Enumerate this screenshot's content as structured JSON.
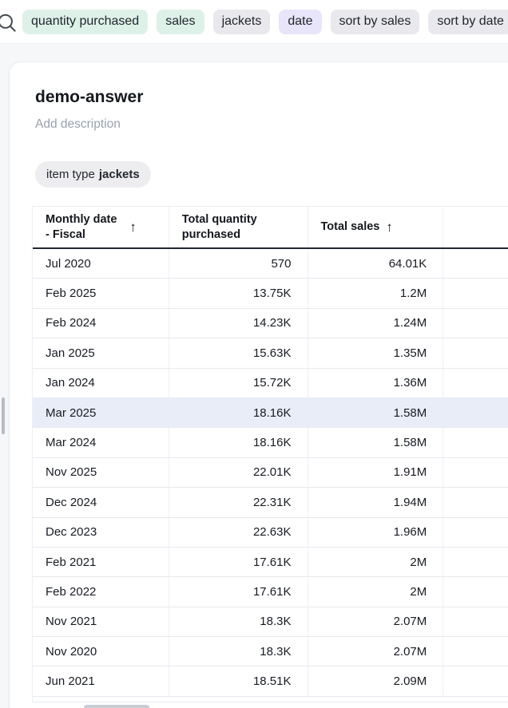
{
  "search_bar": {
    "chips": [
      {
        "label": "quantity purchased",
        "type": "metric"
      },
      {
        "label": "sales",
        "type": "metric"
      },
      {
        "label": "jackets",
        "type": "entity"
      },
      {
        "label": "date",
        "type": "attribute"
      },
      {
        "label": "sort by sales",
        "type": "modifier"
      },
      {
        "label": "sort by date",
        "type": "modifier"
      }
    ]
  },
  "icons": {
    "search": "magnifying-glass",
    "sort_ascending": "↑"
  },
  "card": {
    "title": "demo-answer",
    "description_placeholder": "Add description",
    "filter_chip": {
      "label": "item type",
      "value": "jackets"
    }
  },
  "table": {
    "columns": [
      {
        "label": "Monthly date\n- Fiscal",
        "sort": "asc"
      },
      {
        "label": "Total quantity\npurchased",
        "sort": null
      },
      {
        "label": "Total sales",
        "sort": "asc"
      },
      {
        "label": "",
        "sort": null
      }
    ],
    "rows": [
      {
        "date": "Jul 2020",
        "quantity": "570",
        "sales": "64.01K",
        "highlighted": false
      },
      {
        "date": "Feb 2025",
        "quantity": "13.75K",
        "sales": "1.2M",
        "highlighted": false
      },
      {
        "date": "Feb 2024",
        "quantity": "14.23K",
        "sales": "1.24M",
        "highlighted": false
      },
      {
        "date": "Jan 2025",
        "quantity": "15.63K",
        "sales": "1.35M",
        "highlighted": false
      },
      {
        "date": "Jan 2024",
        "quantity": "15.72K",
        "sales": "1.36M",
        "highlighted": false
      },
      {
        "date": "Mar 2025",
        "quantity": "18.16K",
        "sales": "1.58M",
        "highlighted": true
      },
      {
        "date": "Mar 2024",
        "quantity": "18.16K",
        "sales": "1.58M",
        "highlighted": false
      },
      {
        "date": "Nov 2025",
        "quantity": "22.01K",
        "sales": "1.91M",
        "highlighted": false
      },
      {
        "date": "Dec 2024",
        "quantity": "22.31K",
        "sales": "1.94M",
        "highlighted": false
      },
      {
        "date": "Dec 2023",
        "quantity": "22.63K",
        "sales": "1.96M",
        "highlighted": false
      },
      {
        "date": "Feb 2021",
        "quantity": "17.61K",
        "sales": "2M",
        "highlighted": false
      },
      {
        "date": "Feb 2022",
        "quantity": "17.61K",
        "sales": "2M",
        "highlighted": false
      },
      {
        "date": "Nov 2021",
        "quantity": "18.3K",
        "sales": "2.07M",
        "highlighted": false
      },
      {
        "date": "Nov 2020",
        "quantity": "18.3K",
        "sales": "2.07M",
        "highlighted": false
      },
      {
        "date": "Jun 2021",
        "quantity": "18.51K",
        "sales": "2.09M",
        "highlighted": false
      }
    ]
  },
  "colors": {
    "page_bg": "#f6f7f9",
    "chip_metric_bg": "#def1e8",
    "chip_entity_bg": "#e9e9ed",
    "chip_attribute_bg": "#e8e4fa",
    "chip_modifier_bg": "#e9e9ed",
    "filter_chip_bg": "#ededf0",
    "row_highlight_bg": "#e9edf8",
    "header_rule": "#23272f"
  }
}
